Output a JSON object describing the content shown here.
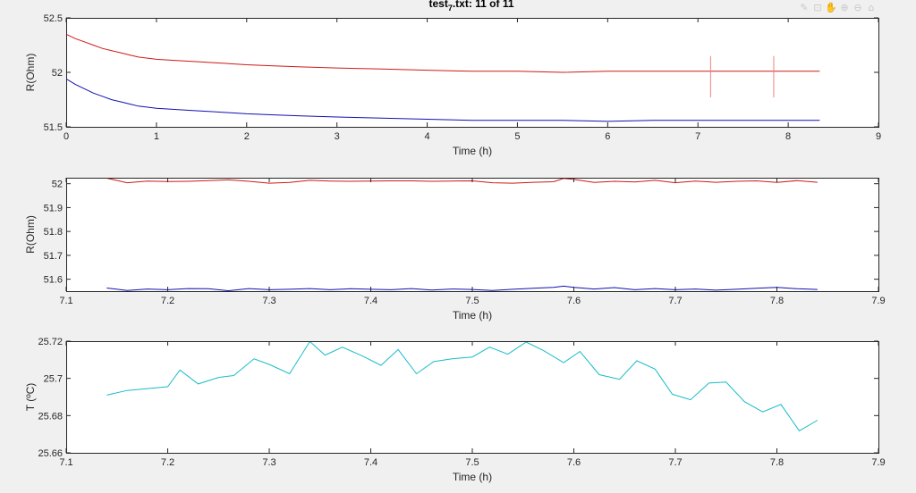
{
  "window": {
    "title_main": "test",
    "title_sub": "7",
    "title_rest": ".txt: 11 of 11"
  },
  "toolbar": [
    {
      "name": "brush-icon",
      "glyph": "✎"
    },
    {
      "name": "data-tip-icon",
      "glyph": "⊡"
    },
    {
      "name": "pan-icon",
      "glyph": "✋"
    },
    {
      "name": "zoom-in-icon",
      "glyph": "⊕"
    },
    {
      "name": "zoom-out-icon",
      "glyph": "⊖"
    },
    {
      "name": "home-icon",
      "glyph": "⌂"
    }
  ],
  "colors": {
    "series_red": "#d01818",
    "series_blue": "#1010b0",
    "series_cyan": "#18bcc8",
    "marker_red": "#f08080"
  },
  "chart_data": [
    {
      "type": "line",
      "xlabel": "Time (h)",
      "ylabel": "R(Ohm)",
      "xlim": [
        0,
        9
      ],
      "ylim": [
        51.5,
        52.5
      ],
      "xticks": [
        0,
        1,
        2,
        3,
        4,
        5,
        6,
        7,
        8,
        9
      ],
      "yticks": [
        51.5,
        52,
        52.5
      ],
      "xtick_labels": [
        "0",
        "1",
        "2",
        "3",
        "4",
        "5",
        "6",
        "7",
        "8",
        "9"
      ],
      "ytick_labels": [
        "51.5",
        "52",
        "52.5"
      ],
      "vlines": [
        {
          "x": 7.14,
          "y": [
            51.77,
            52.15
          ]
        },
        {
          "x": 7.84,
          "y": [
            51.77,
            52.15
          ]
        }
      ],
      "series": [
        {
          "color": "red",
          "x": [
            0,
            0.1,
            0.2,
            0.3,
            0.4,
            0.5,
            0.6,
            0.7,
            0.8,
            0.9,
            1.0,
            1.2,
            1.4,
            1.6,
            1.8,
            2.0,
            2.3,
            2.6,
            3.0,
            3.5,
            4.0,
            4.5,
            5.0,
            5.5,
            6.0,
            6.5,
            7.0,
            7.5,
            8.0,
            8.35
          ],
          "y": [
            52.35,
            52.31,
            52.28,
            52.25,
            52.22,
            52.2,
            52.18,
            52.16,
            52.14,
            52.13,
            52.12,
            52.11,
            52.1,
            52.09,
            52.08,
            52.07,
            52.06,
            52.05,
            52.04,
            52.03,
            52.02,
            52.01,
            52.01,
            52.0,
            52.01,
            52.01,
            52.01,
            52.01,
            52.01,
            52.01
          ]
        },
        {
          "color": "blue",
          "x": [
            0,
            0.1,
            0.2,
            0.3,
            0.4,
            0.5,
            0.6,
            0.7,
            0.8,
            0.9,
            1.0,
            1.2,
            1.4,
            1.6,
            1.8,
            2.0,
            2.3,
            2.6,
            3.0,
            3.5,
            4.0,
            4.5,
            5.0,
            5.5,
            6.0,
            6.5,
            7.0,
            7.5,
            8.0,
            8.35
          ],
          "y": [
            51.94,
            51.89,
            51.85,
            51.81,
            51.78,
            51.75,
            51.73,
            51.71,
            51.69,
            51.68,
            51.67,
            51.66,
            51.65,
            51.64,
            51.63,
            51.62,
            51.61,
            51.6,
            51.59,
            51.58,
            51.57,
            51.56,
            51.56,
            51.56,
            51.55,
            51.56,
            51.56,
            51.56,
            51.56,
            51.56
          ]
        }
      ]
    },
    {
      "type": "line",
      "xlabel": "Time (h)",
      "ylabel": "R(Ohm)",
      "xlim": [
        7.1,
        7.9
      ],
      "ylim": [
        51.55,
        52.025
      ],
      "xticks": [
        7.1,
        7.2,
        7.3,
        7.4,
        7.5,
        7.6,
        7.7,
        7.8,
        7.9
      ],
      "yticks": [
        51.6,
        51.7,
        51.8,
        51.9,
        52
      ],
      "xtick_labels": [
        "7.1",
        "7.2",
        "7.3",
        "7.4",
        "7.5",
        "7.6",
        "7.7",
        "7.8",
        "7.9"
      ],
      "ytick_labels": [
        "51.6",
        "51.7",
        "51.8",
        "51.9",
        "52"
      ],
      "series": [
        {
          "color": "red",
          "x": [
            7.14,
            7.16,
            7.18,
            7.2,
            7.22,
            7.24,
            7.26,
            7.28,
            7.3,
            7.32,
            7.34,
            7.36,
            7.38,
            7.4,
            7.42,
            7.44,
            7.46,
            7.48,
            7.5,
            7.52,
            7.54,
            7.56,
            7.58,
            7.59,
            7.6,
            7.62,
            7.64,
            7.66,
            7.68,
            7.7,
            7.72,
            7.74,
            7.76,
            7.78,
            7.8,
            7.82,
            7.84
          ],
          "y": [
            52.023,
            52.004,
            52.011,
            52.009,
            52.01,
            52.013,
            52.016,
            52.01,
            52.002,
            52.005,
            52.014,
            52.011,
            52.01,
            52.011,
            52.012,
            52.012,
            52.01,
            52.011,
            52.012,
            52.004,
            52.002,
            52.006,
            52.008,
            52.022,
            52.018,
            52.005,
            52.01,
            52.007,
            52.014,
            52.004,
            52.011,
            52.006,
            52.01,
            52.012,
            52.005,
            52.013,
            52.006
          ]
        },
        {
          "color": "blue",
          "x": [
            7.14,
            7.16,
            7.18,
            7.2,
            7.22,
            7.24,
            7.26,
            7.28,
            7.3,
            7.32,
            7.34,
            7.36,
            7.38,
            7.4,
            7.42,
            7.44,
            7.46,
            7.48,
            7.5,
            7.52,
            7.54,
            7.56,
            7.58,
            7.59,
            7.6,
            7.62,
            7.64,
            7.66,
            7.68,
            7.7,
            7.72,
            7.74,
            7.76,
            7.78,
            7.8,
            7.82,
            7.84
          ],
          "y": [
            51.563,
            51.553,
            51.559,
            51.556,
            51.561,
            51.56,
            51.552,
            51.561,
            51.556,
            51.558,
            51.561,
            51.556,
            51.56,
            51.558,
            51.556,
            51.561,
            51.555,
            51.559,
            51.557,
            51.553,
            51.558,
            51.562,
            51.566,
            51.571,
            51.566,
            51.559,
            51.565,
            51.556,
            51.561,
            51.556,
            51.559,
            51.554,
            51.558,
            51.562,
            51.566,
            51.56,
            51.557
          ]
        }
      ]
    },
    {
      "type": "line",
      "xlabel": "Time (h)",
      "ylabel": "T (ºC)",
      "xlim": [
        7.1,
        7.9
      ],
      "ylim": [
        25.66,
        25.72
      ],
      "xticks": [
        7.1,
        7.2,
        7.3,
        7.4,
        7.5,
        7.6,
        7.7,
        7.8,
        7.9
      ],
      "yticks": [
        25.66,
        25.68,
        25.7,
        25.72
      ],
      "xtick_labels": [
        "7.1",
        "7.2",
        "7.3",
        "7.4",
        "7.5",
        "7.6",
        "7.7",
        "7.8",
        "7.9"
      ],
      "ytick_labels": [
        "25.66",
        "25.68",
        "25.7",
        "25.72"
      ],
      "series": [
        {
          "color": "cyan",
          "x": [
            7.14,
            7.16,
            7.18,
            7.2,
            7.212,
            7.23,
            7.25,
            7.265,
            7.285,
            7.3,
            7.32,
            7.34,
            7.355,
            7.372,
            7.392,
            7.41,
            7.427,
            7.445,
            7.462,
            7.48,
            7.5,
            7.517,
            7.535,
            7.553,
            7.57,
            7.59,
            7.606,
            7.625,
            7.645,
            7.662,
            7.68,
            7.697,
            7.715,
            7.733,
            7.75,
            7.768,
            7.786,
            7.804,
            7.822,
            7.84
          ],
          "y": [
            25.691,
            25.6935,
            25.6945,
            25.6955,
            25.7045,
            25.697,
            25.7005,
            25.7015,
            25.7105,
            25.7075,
            25.7025,
            25.7198,
            25.7125,
            25.7168,
            25.712,
            25.707,
            25.7155,
            25.7025,
            25.709,
            25.7105,
            25.7115,
            25.7168,
            25.713,
            25.7195,
            25.715,
            25.7085,
            25.7145,
            25.702,
            25.6995,
            25.7095,
            25.705,
            25.6915,
            25.6885,
            25.6975,
            25.698,
            25.6875,
            25.682,
            25.686,
            25.6718,
            25.6775
          ]
        }
      ]
    }
  ]
}
